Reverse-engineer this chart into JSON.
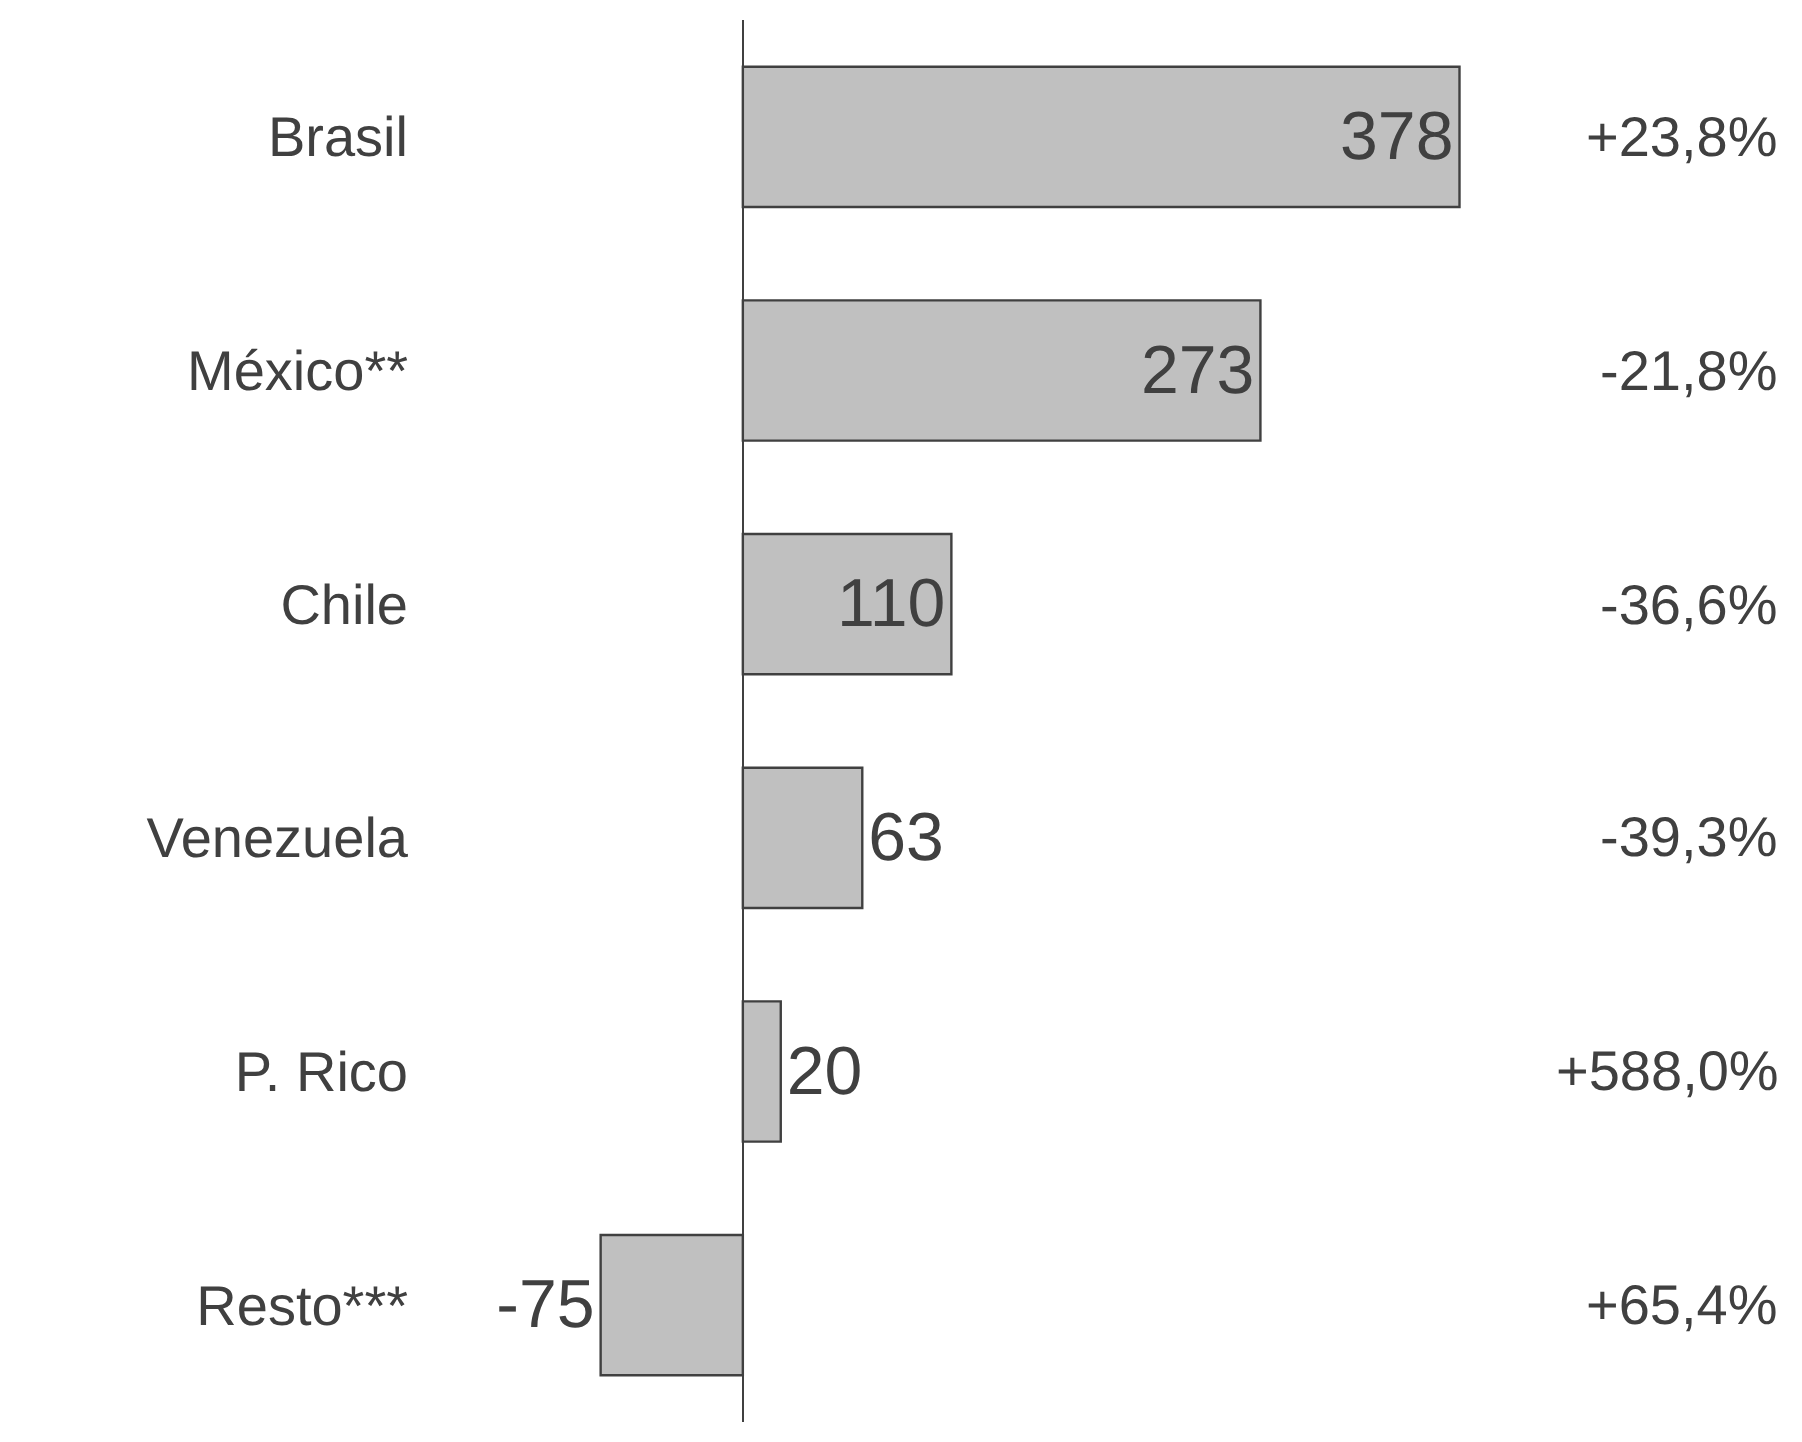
{
  "chart_data": {
    "type": "bar",
    "orientation": "horizontal",
    "categories": [
      "Brasil",
      "México**",
      "Chile",
      "Venezuela",
      "P. Rico",
      "Resto***"
    ],
    "values": [
      378,
      273,
      110,
      63,
      20,
      -75
    ],
    "color": "#c0c0c0",
    "data_labels": true,
    "annotations": [
      "+23,8%",
      "-21,8%",
      "-36,6%",
      "-39,3%",
      "+588,0%",
      "+65,4%"
    ]
  }
}
